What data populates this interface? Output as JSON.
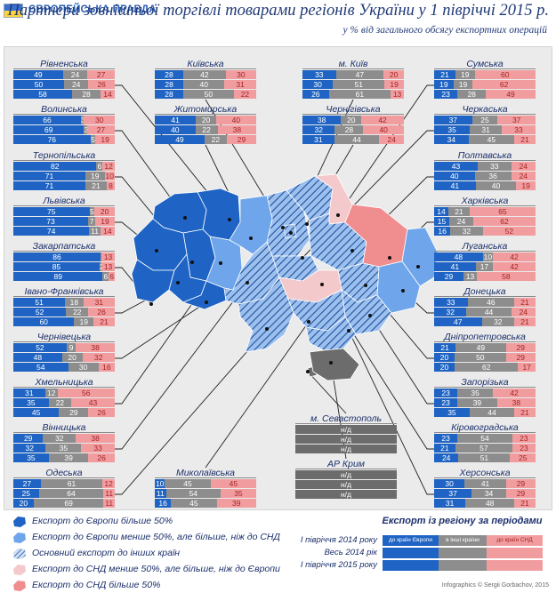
{
  "header": {
    "logo_text": "ЄВРОПЕЙСЬКА ПРАВДА",
    "title": "Партнери зовнішньої торгівлі товарами регіонів України у 1 півріччі 2015 р.",
    "subtitle": "у % від загального обсягу експортних операцій"
  },
  "colors": {
    "europe": "#1f64c4",
    "other": "#8d8d8d",
    "cis": "#f19d9f",
    "map_bg": "#ebebeb"
  },
  "chart_data": {
    "type": "stacked-bar",
    "title": "Партнери зовнішньої торгівлі товарами регіонів України у 1 півріччі 2015 р.",
    "unit": "% від загального обсягу експортних операцій",
    "series_order": [
      "Європа",
      "інші країни",
      "СНД"
    ],
    "row_order": [
      "I півріччя 2014 року",
      "Весь 2014 рік",
      "I півріччя 2015 року"
    ],
    "regions": [
      {
        "name": "Рівненська",
        "rows": [
          [
            49,
            24,
            27
          ],
          [
            50,
            24,
            26
          ],
          [
            58,
            28,
            14
          ]
        ]
      },
      {
        "name": "Волинська",
        "rows": [
          [
            66,
            3,
            30
          ],
          [
            69,
            3,
            27
          ],
          [
            76,
            5,
            19
          ]
        ]
      },
      {
        "name": "Тернопільська",
        "rows": [
          [
            82,
            6,
            12
          ],
          [
            71,
            19,
            10
          ],
          [
            71,
            21,
            8
          ]
        ]
      },
      {
        "name": "Львівська",
        "rows": [
          [
            75,
            5,
            20
          ],
          [
            73,
            7,
            19
          ],
          [
            74,
            11,
            14
          ]
        ]
      },
      {
        "name": "Закарпатська",
        "rows": [
          [
            86,
            1,
            13
          ],
          [
            85,
            2,
            13
          ],
          [
            89,
            6,
            6
          ]
        ]
      },
      {
        "name": "Івано-Франківська",
        "rows": [
          [
            51,
            18,
            31
          ],
          [
            52,
            22,
            26
          ],
          [
            60,
            19,
            21
          ]
        ]
      },
      {
        "name": "Чернівецька",
        "rows": [
          [
            52,
            9,
            38
          ],
          [
            48,
            20,
            32
          ],
          [
            54,
            30,
            16
          ]
        ]
      },
      {
        "name": "Хмельницька",
        "rows": [
          [
            31,
            12,
            56
          ],
          [
            35,
            22,
            43
          ],
          [
            45,
            29,
            26
          ]
        ]
      },
      {
        "name": "Вінницька",
        "rows": [
          [
            29,
            32,
            38
          ],
          [
            32,
            35,
            33
          ],
          [
            35,
            39,
            26
          ]
        ]
      },
      {
        "name": "Одеська",
        "rows": [
          [
            27,
            61,
            12
          ],
          [
            25,
            64,
            11
          ],
          [
            20,
            69,
            11
          ]
        ]
      },
      {
        "name": "Київська",
        "rows": [
          [
            28,
            42,
            30
          ],
          [
            28,
            40,
            31
          ],
          [
            28,
            50,
            22
          ]
        ]
      },
      {
        "name": "Житомирська",
        "rows": [
          [
            41,
            20,
            40
          ],
          [
            40,
            22,
            38
          ],
          [
            49,
            22,
            29
          ]
        ]
      },
      {
        "name": "м. Київ",
        "rows": [
          [
            33,
            47,
            20
          ],
          [
            30,
            51,
            19
          ],
          [
            26,
            61,
            13
          ]
        ]
      },
      {
        "name": "Чернігівська",
        "rows": [
          [
            38,
            20,
            42
          ],
          [
            32,
            28,
            40
          ],
          [
            31,
            44,
            24
          ]
        ]
      },
      {
        "name": "Сумська",
        "rows": [
          [
            21,
            19,
            60
          ],
          [
            19,
            19,
            62
          ],
          [
            23,
            28,
            49
          ]
        ]
      },
      {
        "name": "Черкаська",
        "rows": [
          [
            37,
            25,
            37
          ],
          [
            35,
            31,
            33
          ],
          [
            34,
            45,
            21
          ]
        ]
      },
      {
        "name": "Полтавська",
        "rows": [
          [
            43,
            33,
            24
          ],
          [
            40,
            36,
            24
          ],
          [
            41,
            40,
            19
          ]
        ]
      },
      {
        "name": "Харківська",
        "rows": [
          [
            14,
            21,
            65
          ],
          [
            15,
            24,
            62
          ],
          [
            16,
            32,
            52
          ]
        ]
      },
      {
        "name": "Луганська",
        "rows": [
          [
            48,
            10,
            42
          ],
          [
            41,
            17,
            42
          ],
          [
            29,
            13,
            58
          ]
        ]
      },
      {
        "name": "Донецька",
        "rows": [
          [
            33,
            46,
            21
          ],
          [
            32,
            44,
            24
          ],
          [
            47,
            32,
            21
          ]
        ]
      },
      {
        "name": "Дніпропетровська",
        "rows": [
          [
            21,
            49,
            29
          ],
          [
            20,
            50,
            29
          ],
          [
            20,
            62,
            17
          ]
        ]
      },
      {
        "name": "Запорізька",
        "rows": [
          [
            23,
            35,
            42
          ],
          [
            23,
            39,
            38
          ],
          [
            35,
            44,
            21
          ]
        ]
      },
      {
        "name": "Кіровоградська",
        "rows": [
          [
            23,
            54,
            23
          ],
          [
            21,
            57,
            23
          ],
          [
            24,
            51,
            25
          ]
        ]
      },
      {
        "name": "Херсонська",
        "rows": [
          [
            30,
            41,
            29
          ],
          [
            37,
            34,
            29
          ],
          [
            31,
            48,
            21
          ]
        ]
      },
      {
        "name": "Миколаївська",
        "rows": [
          [
            10,
            45,
            45
          ],
          [
            11,
            54,
            35
          ],
          [
            16,
            45,
            39
          ]
        ]
      },
      {
        "name": "м. Севастополь",
        "no_data": true,
        "rows_text": [
          "н/д",
          "н/д",
          "н/д"
        ]
      },
      {
        "name": "АР Крим",
        "no_data": true,
        "rows_text": [
          "н/д",
          "н/д",
          "н/д"
        ]
      }
    ]
  },
  "legend": {
    "items": [
      {
        "label": "Експорт до Європи більше 50%"
      },
      {
        "label": "Експорт до Європи менше 50%, але більше, ніж до СНД"
      },
      {
        "label": "Основний експорт до інших країн"
      },
      {
        "label": "Експорт до СНД менше 50%, але більше, ніж до Європи"
      },
      {
        "label": "Експорт до СНД більше 50%"
      }
    ]
  },
  "periods": {
    "title": "Експорт із регіону за періодами",
    "rows": [
      "I півріччя 2014 року",
      "Весь 2014 рік",
      "I півріччя 2015 року"
    ],
    "bar_labels": [
      "до країн Європи",
      "в інші країни",
      "до країн СНД"
    ],
    "shares": [
      0.35,
      0.3,
      0.35
    ]
  },
  "credit": "Infographics © Sergii Gorbachov, 2015"
}
